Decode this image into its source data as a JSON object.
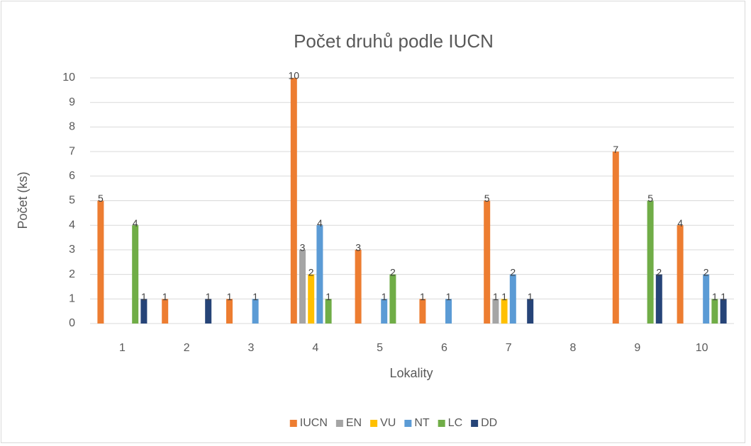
{
  "chart_data": {
    "type": "bar",
    "title": "Počet druhů podle IUCN",
    "x_label": "Lokality",
    "y_label": "Počet (ks)",
    "categories": [
      "1",
      "2",
      "3",
      "4",
      "5",
      "6",
      "7",
      "8",
      "9",
      "10"
    ],
    "series": [
      {
        "name": "IUCN",
        "color": "#ed7d31",
        "values": [
          5,
          1,
          1,
          10,
          3,
          1,
          5,
          0,
          7,
          4
        ]
      },
      {
        "name": "EN",
        "color": "#a5a5a5",
        "values": [
          0,
          0,
          0,
          3,
          0,
          0,
          1,
          0,
          0,
          0
        ]
      },
      {
        "name": "VU",
        "color": "#ffc000",
        "values": [
          0,
          0,
          0,
          2,
          0,
          0,
          1,
          0,
          0,
          0
        ]
      },
      {
        "name": "NT",
        "color": "#5b9bd5",
        "values": [
          0,
          0,
          1,
          4,
          1,
          1,
          2,
          0,
          0,
          2
        ]
      },
      {
        "name": "LC",
        "color": "#70ad47",
        "values": [
          4,
          0,
          0,
          1,
          2,
          0,
          0,
          0,
          5,
          1
        ]
      },
      {
        "name": "DD",
        "color": "#264478",
        "values": [
          1,
          1,
          0,
          0,
          0,
          0,
          1,
          0,
          2,
          1
        ]
      }
    ],
    "ylim": [
      0,
      10
    ],
    "yticks": [
      0,
      1,
      2,
      3,
      4,
      5,
      6,
      7,
      8,
      9,
      10
    ],
    "grid": true,
    "legend": "bottom"
  }
}
